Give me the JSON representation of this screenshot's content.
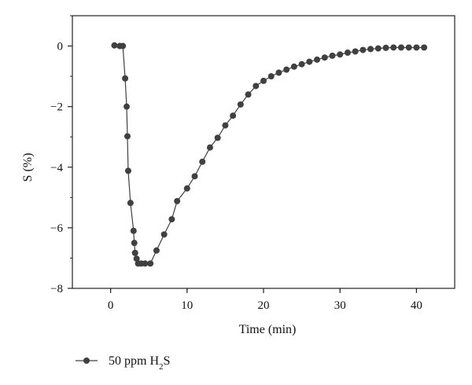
{
  "chart_data": {
    "type": "line",
    "title": "",
    "xlabel": "Time (min)",
    "ylabel": "S (%)",
    "xlim": [
      -5,
      45
    ],
    "ylim": [
      -8,
      1
    ],
    "x_ticks": [
      0,
      10,
      20,
      30,
      40
    ],
    "y_ticks": [
      0,
      -2,
      -4,
      -6,
      -8
    ],
    "x_tick_labels": [
      "0",
      "10",
      "20",
      "30",
      "40"
    ],
    "y_tick_labels": [
      "0",
      "−2",
      "−4",
      "−6",
      "−8"
    ],
    "grid": false,
    "legend_position": "bottom-left, below plot",
    "series": [
      {
        "name": "50 ppm H2S",
        "name_parts": {
          "prefix": "50 ppm H",
          "subscript": "2",
          "suffix": "S"
        },
        "color": "#404040",
        "marker": "circle",
        "points": [
          [
            0.5,
            0.02
          ],
          [
            1.2,
            0.0
          ],
          [
            1.6,
            0.0
          ],
          [
            1.9,
            -1.07
          ],
          [
            2.1,
            -2.0
          ],
          [
            2.2,
            -2.98
          ],
          [
            2.3,
            -4.12
          ],
          [
            2.6,
            -5.18
          ],
          [
            3.0,
            -6.1
          ],
          [
            3.1,
            -6.5
          ],
          [
            3.2,
            -6.83
          ],
          [
            3.4,
            -7.02
          ],
          [
            3.6,
            -7.18
          ],
          [
            4.0,
            -7.18
          ],
          [
            4.5,
            -7.18
          ],
          [
            5.2,
            -7.18
          ],
          [
            6.0,
            -6.75
          ],
          [
            7.0,
            -6.22
          ],
          [
            8.0,
            -5.72
          ],
          [
            8.7,
            -5.12
          ],
          [
            10.0,
            -4.7
          ],
          [
            11.0,
            -4.3
          ],
          [
            12.0,
            -3.82
          ],
          [
            13.0,
            -3.35
          ],
          [
            14.0,
            -3.03
          ],
          [
            15.0,
            -2.62
          ],
          [
            16.0,
            -2.3
          ],
          [
            17.0,
            -1.93
          ],
          [
            18.0,
            -1.6
          ],
          [
            19.0,
            -1.32
          ],
          [
            20.0,
            -1.15
          ],
          [
            21.0,
            -1.0
          ],
          [
            22.0,
            -0.88
          ],
          [
            23.0,
            -0.78
          ],
          [
            24.0,
            -0.68
          ],
          [
            25.0,
            -0.6
          ],
          [
            26.0,
            -0.52
          ],
          [
            27.0,
            -0.45
          ],
          [
            28.0,
            -0.38
          ],
          [
            29.0,
            -0.32
          ],
          [
            30.0,
            -0.28
          ],
          [
            31.0,
            -0.22
          ],
          [
            32.0,
            -0.18
          ],
          [
            33.0,
            -0.13
          ],
          [
            34.0,
            -0.1
          ],
          [
            35.0,
            -0.08
          ],
          [
            36.0,
            -0.06
          ],
          [
            37.0,
            -0.05
          ],
          [
            38.0,
            -0.05
          ],
          [
            39.0,
            -0.05
          ],
          [
            40.0,
            -0.05
          ],
          [
            41.0,
            -0.05
          ]
        ]
      }
    ]
  }
}
